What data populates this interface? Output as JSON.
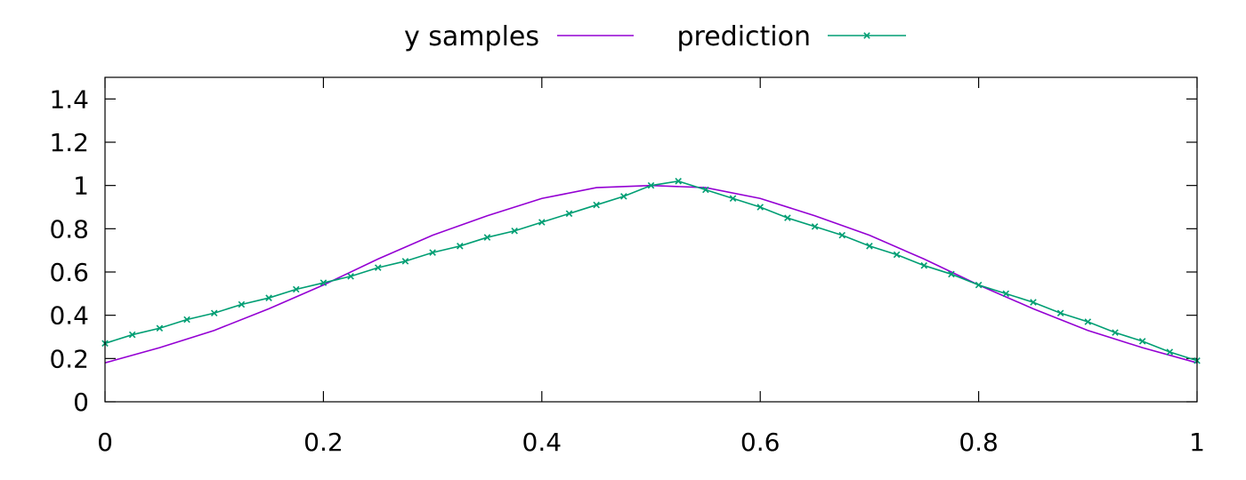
{
  "chart_data": {
    "type": "line",
    "title": "",
    "xlabel": "",
    "ylabel": "",
    "xlim": [
      0,
      1
    ],
    "ylim": [
      0,
      1.5
    ],
    "x_ticks": [
      0,
      0.2,
      0.4,
      0.6,
      0.8,
      1
    ],
    "x_tick_labels": [
      "0",
      "0.2",
      "0.4",
      "0.6",
      "0.8",
      "1"
    ],
    "y_ticks": [
      0,
      0.2,
      0.4,
      0.6,
      0.8,
      1,
      1.2,
      1.4
    ],
    "y_tick_labels": [
      "0",
      "0.2",
      "0.4",
      "0.6",
      "0.8",
      "1",
      "1.2",
      "1.4"
    ],
    "grid": false,
    "legend_position": "top-center",
    "series": [
      {
        "name": "y samples",
        "color": "#9400d3",
        "marker": "none",
        "x": [
          0,
          0.05,
          0.1,
          0.15,
          0.2,
          0.25,
          0.3,
          0.35,
          0.4,
          0.45,
          0.5,
          0.55,
          0.6,
          0.65,
          0.7,
          0.75,
          0.8,
          0.85,
          0.9,
          0.95,
          1
        ],
        "y": [
          0.18,
          0.25,
          0.33,
          0.43,
          0.54,
          0.66,
          0.77,
          0.86,
          0.94,
          0.99,
          1.0,
          0.99,
          0.94,
          0.86,
          0.77,
          0.66,
          0.54,
          0.43,
          0.33,
          0.25,
          0.18
        ]
      },
      {
        "name": "prediction",
        "color": "#009e73",
        "marker": "x",
        "x": [
          0,
          0.025,
          0.05,
          0.075,
          0.1,
          0.125,
          0.15,
          0.175,
          0.2,
          0.225,
          0.25,
          0.275,
          0.3,
          0.325,
          0.35,
          0.375,
          0.4,
          0.425,
          0.45,
          0.475,
          0.5,
          0.525,
          0.55,
          0.575,
          0.6,
          0.625,
          0.65,
          0.675,
          0.7,
          0.725,
          0.75,
          0.775,
          0.8,
          0.825,
          0.85,
          0.875,
          0.9,
          0.925,
          0.95,
          0.975,
          1
        ],
        "y": [
          0.27,
          0.31,
          0.34,
          0.38,
          0.41,
          0.45,
          0.48,
          0.52,
          0.55,
          0.58,
          0.62,
          0.65,
          0.69,
          0.72,
          0.76,
          0.79,
          0.83,
          0.87,
          0.91,
          0.95,
          1.0,
          1.02,
          0.98,
          0.94,
          0.9,
          0.85,
          0.81,
          0.77,
          0.72,
          0.68,
          0.63,
          0.59,
          0.54,
          0.5,
          0.46,
          0.41,
          0.37,
          0.32,
          0.28,
          0.23,
          0.19
        ]
      }
    ]
  }
}
